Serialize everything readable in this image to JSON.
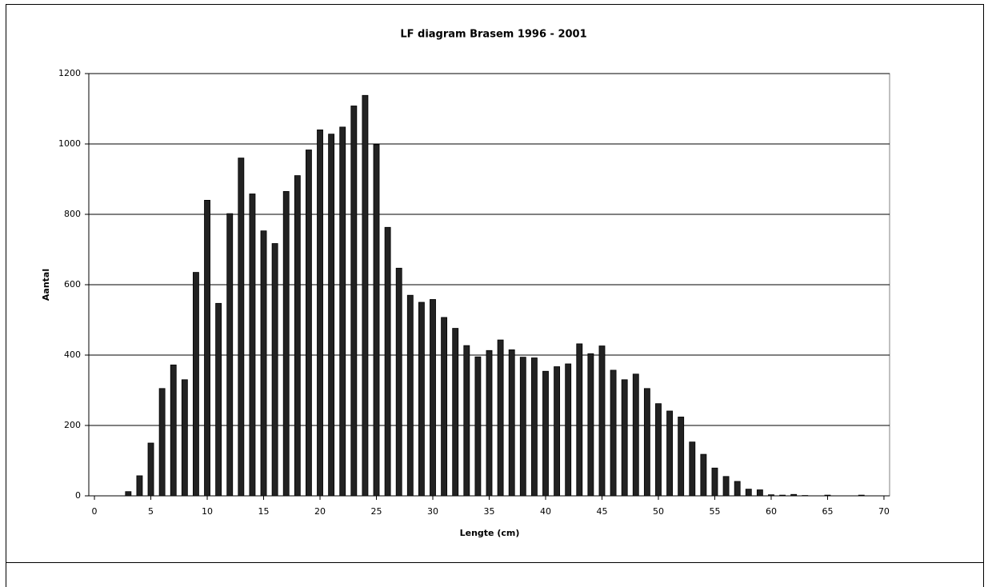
{
  "chart_data": {
    "type": "bar",
    "title": "LF diagram Brasem 1996 - 2001",
    "x_label": "Lengte (cm)",
    "y_label": "Aantal",
    "x": [
      0,
      1,
      2,
      3,
      4,
      5,
      6,
      7,
      8,
      9,
      10,
      11,
      12,
      13,
      14,
      15,
      16,
      17,
      18,
      19,
      20,
      21,
      22,
      23,
      24,
      25,
      26,
      27,
      28,
      29,
      30,
      31,
      32,
      33,
      34,
      35,
      36,
      37,
      38,
      39,
      40,
      41,
      42,
      43,
      44,
      45,
      46,
      47,
      48,
      49,
      50,
      51,
      52,
      53,
      54,
      55,
      56,
      57,
      58,
      59,
      60,
      61,
      62,
      63,
      64,
      65,
      66,
      67,
      68,
      69,
      70
    ],
    "values": [
      0,
      0,
      0,
      12,
      57,
      150,
      305,
      372,
      330,
      635,
      840,
      547,
      802,
      960,
      858,
      753,
      717,
      865,
      910,
      983,
      1040,
      1028,
      1048,
      1108,
      1138,
      998,
      763,
      647,
      570,
      550,
      558,
      507,
      476,
      427,
      395,
      413,
      443,
      415,
      394,
      392,
      354,
      367,
      375,
      432,
      404,
      426,
      357,
      330,
      346,
      305,
      262,
      241,
      224,
      153,
      118,
      79,
      55,
      41,
      19,
      17,
      3,
      2,
      4,
      1,
      0,
      2,
      0,
      0,
      2,
      0,
      0
    ],
    "color": "#222222",
    "xlim": [
      -0.5,
      70.5
    ],
    "xticks": [
      0,
      5,
      10,
      15,
      20,
      25,
      30,
      35,
      40,
      45,
      50,
      55,
      60,
      65,
      70
    ],
    "ylim": [
      0,
      1200
    ],
    "yticks": [
      0,
      200,
      400,
      600,
      800,
      1000,
      1200
    ],
    "grid": true
  }
}
